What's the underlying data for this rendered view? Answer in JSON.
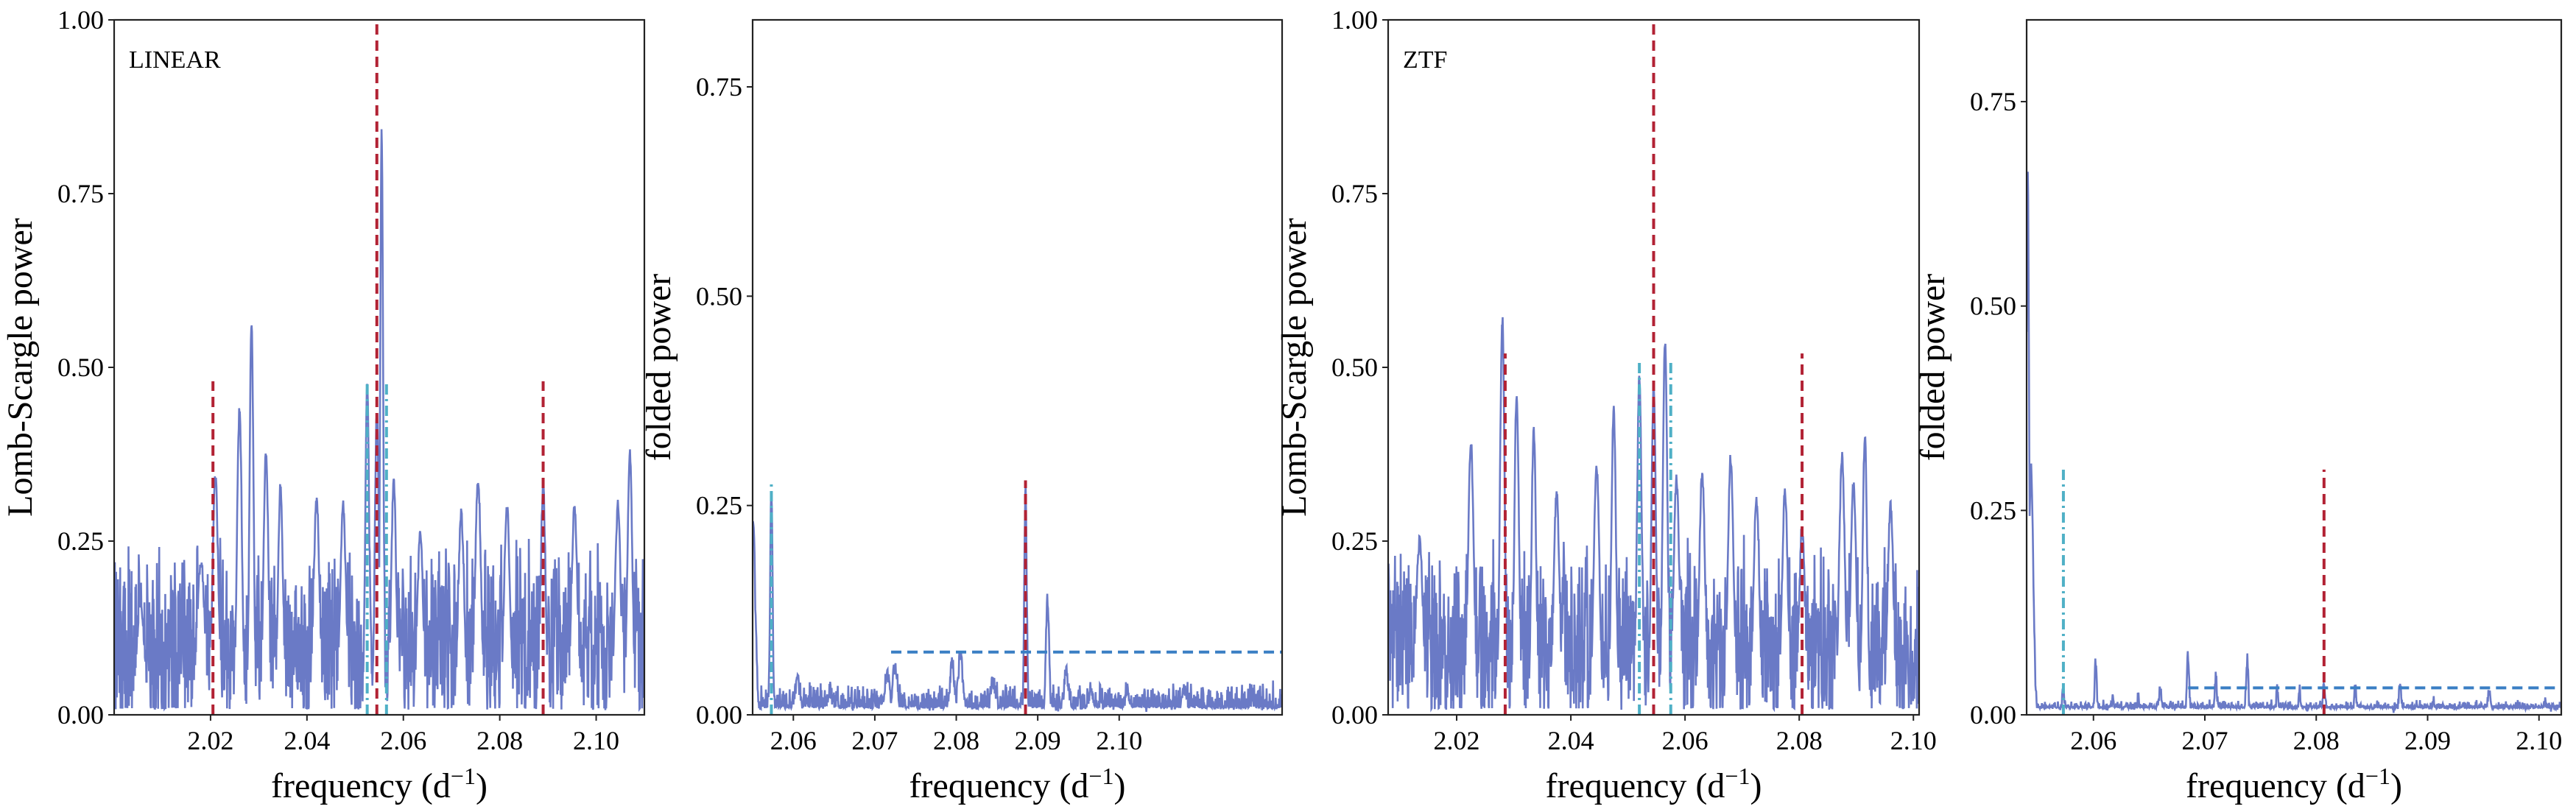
{
  "colors": {
    "spectrum": "#6a7ac6",
    "peak_marker": "#b22234",
    "alias_marker": "#4fb0c6",
    "threshold": "#3a7fc4"
  },
  "chart_data": [
    {
      "type": "line",
      "panel_label": "LINEAR",
      "xlabel": "frequency (d",
      "xlabel_sup": "−1",
      "xlabel_close": ")",
      "ylabel": "Lomb-Scargle power",
      "xlim": [
        2.0,
        2.11
      ],
      "ylim": [
        0.0,
        1.0
      ],
      "xticks": [
        2.02,
        2.04,
        2.06,
        2.08,
        2.1
      ],
      "xtick_labels": [
        "2.02",
        "2.04",
        "2.06",
        "2.08",
        "2.10"
      ],
      "yticks": [
        0.0,
        0.25,
        0.5,
        0.75,
        1.0
      ],
      "ytick_labels": [
        "0.00",
        "0.25",
        "0.50",
        "0.75",
        "1.00"
      ],
      "noise_level": 0.1,
      "noise_amplitude": 0.11,
      "peaks": [
        {
          "x": 2.0055,
          "y": 0.16,
          "w": 0.0008
        },
        {
          "x": 2.018,
          "y": 0.22,
          "w": 0.0008
        },
        {
          "x": 2.021,
          "y": 0.34,
          "w": 0.0006
        },
        {
          "x": 2.026,
          "y": 0.44,
          "w": 0.0005
        },
        {
          "x": 2.0285,
          "y": 0.57,
          "w": 0.0004
        },
        {
          "x": 2.0315,
          "y": 0.38,
          "w": 0.0005
        },
        {
          "x": 2.0345,
          "y": 0.33,
          "w": 0.0005
        },
        {
          "x": 2.042,
          "y": 0.31,
          "w": 0.0006
        },
        {
          "x": 2.0475,
          "y": 0.3,
          "w": 0.0006
        },
        {
          "x": 2.0525,
          "y": 0.48,
          "w": 0.0004
        },
        {
          "x": 2.0545,
          "y": 0.44,
          "w": 0.0004
        },
        {
          "x": 2.0555,
          "y": 0.84,
          "w": 0.0003
        },
        {
          "x": 2.058,
          "y": 0.34,
          "w": 0.0005
        },
        {
          "x": 2.0635,
          "y": 0.26,
          "w": 0.0006
        },
        {
          "x": 2.072,
          "y": 0.29,
          "w": 0.0006
        },
        {
          "x": 2.0755,
          "y": 0.34,
          "w": 0.0006
        },
        {
          "x": 2.0815,
          "y": 0.3,
          "w": 0.0006
        },
        {
          "x": 2.089,
          "y": 0.33,
          "w": 0.0005
        },
        {
          "x": 2.0955,
          "y": 0.3,
          "w": 0.0006
        },
        {
          "x": 2.1045,
          "y": 0.3,
          "w": 0.0006
        },
        {
          "x": 2.107,
          "y": 0.38,
          "w": 0.0005
        }
      ],
      "vlines": [
        {
          "x": 2.0205,
          "y0": 0.0,
          "y1": 0.48,
          "style": "dashed",
          "color": "#b22234"
        },
        {
          "x": 2.0545,
          "y0": 0.0,
          "y1": 1.0,
          "style": "dashed",
          "color": "#b22234"
        },
        {
          "x": 2.089,
          "y0": 0.0,
          "y1": 0.48,
          "style": "dashed",
          "color": "#b22234"
        },
        {
          "x": 2.0525,
          "y0": 0.0,
          "y1": 0.48,
          "style": "dashdot",
          "color": "#4fb0c6"
        },
        {
          "x": 2.0565,
          "y0": 0.0,
          "y1": 0.48,
          "style": "dashdot",
          "color": "#4fb0c6"
        }
      ],
      "hlines": []
    },
    {
      "type": "line",
      "panel_label": "",
      "xlabel": "frequency (d",
      "xlabel_sup": "−1",
      "xlabel_close": ")",
      "ylabel": "folded power",
      "xlim": [
        2.055,
        2.12
      ],
      "ylim": [
        0.0,
        0.83
      ],
      "xticks": [
        2.06,
        2.07,
        2.08,
        2.09,
        2.1
      ],
      "xtick_labels": [
        "2.06",
        "2.07",
        "2.08",
        "2.09",
        "2.10"
      ],
      "yticks": [
        0.0,
        0.25,
        0.5,
        0.75
      ],
      "ytick_labels": [
        "0.00",
        "0.25",
        "0.50",
        "0.75"
      ],
      "noise_level": 0.012,
      "noise_amplitude": 0.02,
      "peaks": [
        {
          "x": 2.0551,
          "y": 0.23,
          "w": 0.0002
        },
        {
          "x": 2.0553,
          "y": 0.12,
          "w": 0.0002
        },
        {
          "x": 2.0573,
          "y": 0.27,
          "w": 0.00015
        },
        {
          "x": 2.0605,
          "y": 0.04,
          "w": 0.0003
        },
        {
          "x": 2.0645,
          "y": 0.03,
          "w": 0.0003
        },
        {
          "x": 2.0715,
          "y": 0.05,
          "w": 0.0003
        },
        {
          "x": 2.0725,
          "y": 0.06,
          "w": 0.0003
        },
        {
          "x": 2.0795,
          "y": 0.06,
          "w": 0.0003
        },
        {
          "x": 2.0805,
          "y": 0.07,
          "w": 0.0003
        },
        {
          "x": 2.0845,
          "y": 0.04,
          "w": 0.0003
        },
        {
          "x": 2.0885,
          "y": 0.27,
          "w": 0.00015
        },
        {
          "x": 2.0912,
          "y": 0.14,
          "w": 0.0002
        },
        {
          "x": 2.0935,
          "y": 0.05,
          "w": 0.0003
        },
        {
          "x": 2.0965,
          "y": 0.03,
          "w": 0.0003
        },
        {
          "x": 2.101,
          "y": 0.03,
          "w": 0.0003
        },
        {
          "x": 2.108,
          "y": 0.03,
          "w": 0.0003
        }
      ],
      "vlines": [
        {
          "x": 2.0573,
          "y0": 0.0,
          "y1": 0.28,
          "style": "dashdot",
          "color": "#4fb0c6"
        },
        {
          "x": 2.0885,
          "y0": 0.0,
          "y1": 0.28,
          "style": "dashed",
          "color": "#b22234"
        }
      ],
      "hlines": [
        {
          "y": 0.075,
          "x0": 2.072,
          "x1": 2.12,
          "style": "dashed",
          "color": "#3a7fc4"
        }
      ]
    },
    {
      "type": "line",
      "panel_label": "ZTF",
      "xlabel": "frequency (d",
      "xlabel_sup": "−1",
      "xlabel_close": ")",
      "ylabel": "Lomb-Scargle power",
      "xlim": [
        2.008,
        2.101
      ],
      "ylim": [
        0.0,
        1.0
      ],
      "xticks": [
        2.02,
        2.04,
        2.06,
        2.08,
        2.1
      ],
      "xtick_labels": [
        "2.02",
        "2.04",
        "2.06",
        "2.08",
        "2.10"
      ],
      "yticks": [
        0.0,
        0.25,
        0.5,
        0.75,
        1.0
      ],
      "ytick_labels": [
        "0.00",
        "0.25",
        "0.50",
        "0.75",
        "1.00"
      ],
      "noise_level": 0.1,
      "noise_amplitude": 0.11,
      "peaks": [
        {
          "x": 2.0135,
          "y": 0.25,
          "w": 0.0006
        },
        {
          "x": 2.0225,
          "y": 0.39,
          "w": 0.0005
        },
        {
          "x": 2.028,
          "y": 0.57,
          "w": 0.0004
        },
        {
          "x": 2.0305,
          "y": 0.46,
          "w": 0.0004
        },
        {
          "x": 2.0335,
          "y": 0.41,
          "w": 0.0004
        },
        {
          "x": 2.0375,
          "y": 0.32,
          "w": 0.0005
        },
        {
          "x": 2.0445,
          "y": 0.36,
          "w": 0.0005
        },
        {
          "x": 2.0475,
          "y": 0.44,
          "w": 0.0004
        },
        {
          "x": 2.052,
          "y": 0.49,
          "w": 0.0004
        },
        {
          "x": 2.0545,
          "y": 0.47,
          "w": 0.0004
        },
        {
          "x": 2.0565,
          "y": 0.54,
          "w": 0.0004
        },
        {
          "x": 2.0585,
          "y": 0.34,
          "w": 0.0005
        },
        {
          "x": 2.063,
          "y": 0.35,
          "w": 0.0005
        },
        {
          "x": 2.068,
          "y": 0.37,
          "w": 0.0005
        },
        {
          "x": 2.0725,
          "y": 0.31,
          "w": 0.0005
        },
        {
          "x": 2.0775,
          "y": 0.32,
          "w": 0.0005
        },
        {
          "x": 2.0805,
          "y": 0.27,
          "w": 0.0005
        },
        {
          "x": 2.0875,
          "y": 0.37,
          "w": 0.0005
        },
        {
          "x": 2.0895,
          "y": 0.33,
          "w": 0.0005
        },
        {
          "x": 2.0915,
          "y": 0.4,
          "w": 0.0004
        },
        {
          "x": 2.096,
          "y": 0.3,
          "w": 0.0005
        }
      ],
      "vlines": [
        {
          "x": 2.0285,
          "y0": 0.0,
          "y1": 0.52,
          "style": "dashed",
          "color": "#b22234"
        },
        {
          "x": 2.0545,
          "y0": 0.0,
          "y1": 1.0,
          "style": "dashed",
          "color": "#b22234"
        },
        {
          "x": 2.0805,
          "y0": 0.0,
          "y1": 0.52,
          "style": "dashed",
          "color": "#b22234"
        },
        {
          "x": 2.052,
          "y0": 0.0,
          "y1": 0.51,
          "style": "dashdot",
          "color": "#4fb0c6"
        },
        {
          "x": 2.0575,
          "y0": 0.0,
          "y1": 0.51,
          "style": "dashdot",
          "color": "#4fb0c6"
        }
      ],
      "hlines": []
    },
    {
      "type": "line",
      "panel_label": "",
      "xlabel": "frequency (d",
      "xlabel_sup": "−1",
      "xlabel_close": ")",
      "ylabel": "folded power",
      "xlim": [
        2.054,
        2.102
      ],
      "ylim": [
        0.0,
        0.85
      ],
      "xticks": [
        2.06,
        2.07,
        2.08,
        2.09,
        2.1
      ],
      "xtick_labels": [
        "2.06",
        "2.07",
        "2.08",
        "2.09",
        "2.10"
      ],
      "yticks": [
        0.0,
        0.25,
        0.5,
        0.75
      ],
      "ytick_labels": [
        "0.00",
        "0.25",
        "0.50",
        "0.75"
      ],
      "noise_level": 0.007,
      "noise_amplitude": 0.008,
      "peaks": [
        {
          "x": 2.0541,
          "y": 0.66,
          "w": 0.00012
        },
        {
          "x": 2.0544,
          "y": 0.3,
          "w": 0.0002
        },
        {
          "x": 2.0573,
          "y": 0.03,
          "w": 0.0001
        },
        {
          "x": 2.0602,
          "y": 0.065,
          "w": 0.0001
        },
        {
          "x": 2.0617,
          "y": 0.02,
          "w": 0.0001
        },
        {
          "x": 2.064,
          "y": 0.02,
          "w": 0.0001
        },
        {
          "x": 2.066,
          "y": 0.035,
          "w": 0.0001
        },
        {
          "x": 2.0685,
          "y": 0.075,
          "w": 0.0001
        },
        {
          "x": 2.071,
          "y": 0.045,
          "w": 0.0001
        },
        {
          "x": 2.0738,
          "y": 0.07,
          "w": 0.0001
        },
        {
          "x": 2.0765,
          "y": 0.03,
          "w": 0.0001
        },
        {
          "x": 2.0785,
          "y": 0.03,
          "w": 0.0001
        },
        {
          "x": 2.0807,
          "y": 0.04,
          "w": 0.0001
        },
        {
          "x": 2.0835,
          "y": 0.03,
          "w": 0.0001
        },
        {
          "x": 2.0875,
          "y": 0.04,
          "w": 0.0001
        },
        {
          "x": 2.0905,
          "y": 0.02,
          "w": 0.0001
        },
        {
          "x": 2.0955,
          "y": 0.03,
          "w": 0.0001
        },
        {
          "x": 2.1005,
          "y": 0.02,
          "w": 0.0001
        }
      ],
      "vlines": [
        {
          "x": 2.0573,
          "y0": 0.0,
          "y1": 0.3,
          "style": "dashdot",
          "color": "#4fb0c6"
        },
        {
          "x": 2.0807,
          "y0": 0.0,
          "y1": 0.3,
          "style": "dashed",
          "color": "#b22234"
        }
      ],
      "hlines": [
        {
          "y": 0.033,
          "x0": 2.0685,
          "x1": 2.102,
          "style": "dashed",
          "color": "#3a7fc4"
        }
      ]
    }
  ]
}
